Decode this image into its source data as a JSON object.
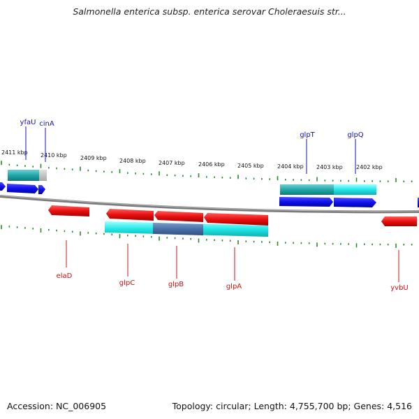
{
  "title": "Salmonella enterica subsp. enterica serovar Choleraesuis str...",
  "footer": {
    "accession": "Accession: NC_006905",
    "summary": "Topology: circular; Length: 4,755,700 bp; Genes: 4,516"
  },
  "colors": {
    "forward_gene": "#1a1aee",
    "reverse_gene": "#ee1a1a",
    "forward_label": "#1010c0",
    "reverse_label": "#d01010",
    "tick": "#2a8a2a",
    "operon": "#20e0e0",
    "backbone": "#808080"
  },
  "kbp_labels": [
    "2411 kbp",
    "2410 kbp",
    "2409 kbp",
    "2408 kbp",
    "2407 kbp",
    "2406 kbp",
    "2405 kbp",
    "2404 kbp",
    "2403 kbp",
    "2402 kbp"
  ],
  "forward_genes": [
    "yfaU",
    "cinA",
    "glpT",
    "glpQ"
  ],
  "reverse_genes": [
    "elaD",
    "glpC",
    "glpB",
    "glpA",
    "yvbU"
  ]
}
